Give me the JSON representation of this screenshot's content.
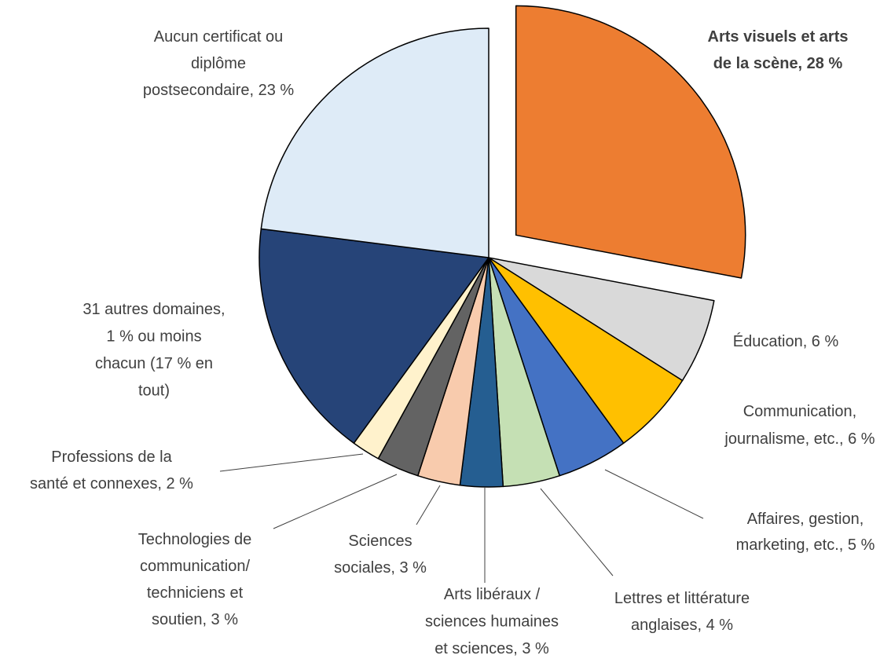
{
  "chart_data": {
    "type": "pie",
    "labels": [
      [
        "Arts visuels et arts",
        "de la scène, 28 %"
      ],
      [
        "Éducation, 6 %"
      ],
      [
        "Communication,",
        "journalisme, etc., 6 %"
      ],
      [
        "Affaires, gestion,",
        "marketing, etc., 5 %"
      ],
      [
        "Lettres et littérature",
        "anglaises, 4 %"
      ],
      [
        "Arts libéraux /",
        "sciences humaines",
        "et sciences, 3 %"
      ],
      [
        "Sciences",
        "sociales, 3 %"
      ],
      [
        "Technologies de",
        "communication/",
        "techniciens et",
        "soutien, 3 %"
      ],
      [
        "Professions de la",
        "santé et connexes, 2 %"
      ],
      [
        "31 autres domaines,",
        "1 % ou moins",
        "chacun (17 % en",
        "tout)"
      ],
      [
        "Aucun certificat ou",
        "diplôme",
        "postsecondaire, 23 %"
      ]
    ],
    "values": [
      28,
      6,
      6,
      5,
      4,
      3,
      3,
      3,
      2,
      17,
      23
    ],
    "colors": [
      "#ED7D31",
      "#D9D9D9",
      "#FFC000",
      "#4472C4",
      "#C5E0B4",
      "#255E91",
      "#F8CBAD",
      "#636363",
      "#FFF2CC",
      "#264478",
      "#DEEBF7"
    ]
  }
}
